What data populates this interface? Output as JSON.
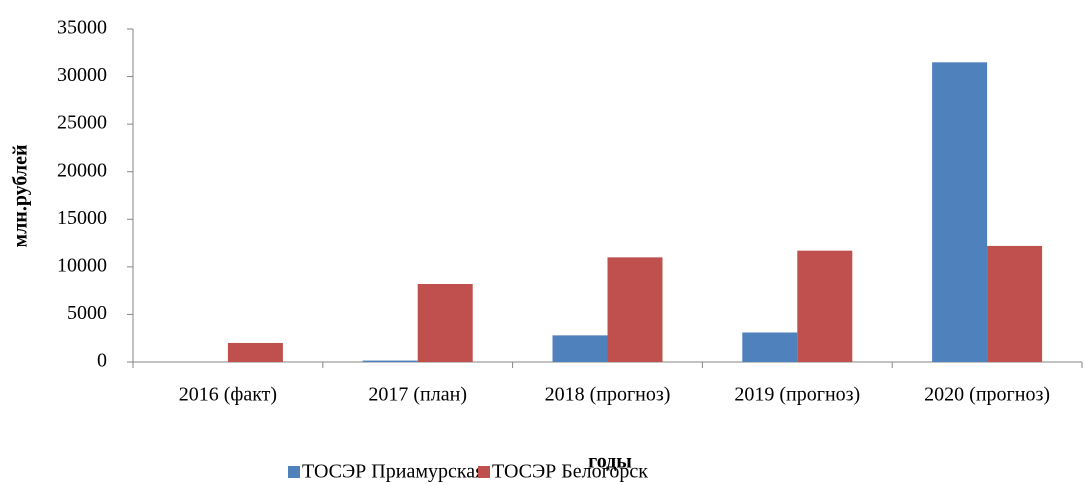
{
  "chart_data": {
    "type": "bar",
    "categories": [
      "2016 (факт)",
      "2017 (план)",
      "2018 (прогноз)",
      "2019 (прогноз)",
      "2020 (прогноз)"
    ],
    "series": [
      {
        "name": "ТОСЭР Приамурская",
        "color": "#4f81bd",
        "values": [
          0,
          150,
          2800,
          3100,
          31500
        ]
      },
      {
        "name": "ТОСЭР Белогорск",
        "color": "#c0504d",
        "values": [
          2000,
          8200,
          11000,
          11700,
          12200
        ]
      }
    ],
    "ylim": [
      0,
      35000
    ],
    "yticks": [
      0,
      5000,
      10000,
      15000,
      20000,
      25000,
      30000,
      35000
    ],
    "xlabel": "годы",
    "ylabel": "млн.рублей",
    "grid": false,
    "legend": "bottom"
  }
}
